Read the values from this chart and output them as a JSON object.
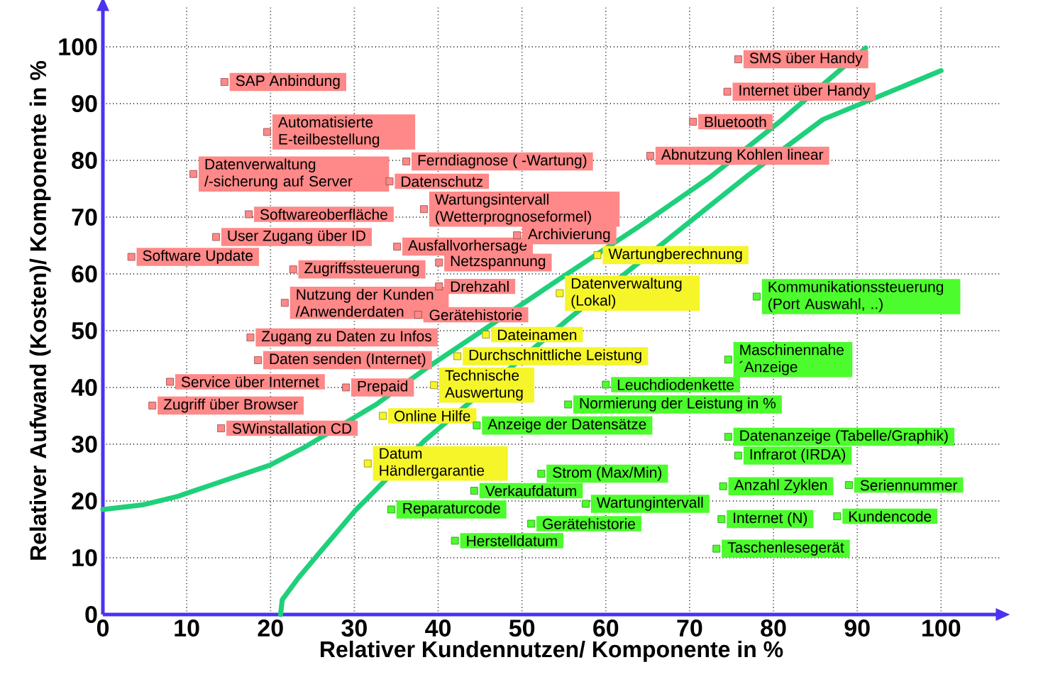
{
  "chart_data": {
    "type": "scatter",
    "xlabel": "Relativer Kundennutzen/ Komponente in %",
    "ylabel": "Relativer Aufwand (Kosten)/ Komponente in %",
    "xlim": [
      0,
      107
    ],
    "ylim": [
      0,
      107
    ],
    "xticks": [
      0,
      10,
      20,
      30,
      40,
      50,
      60,
      70,
      80,
      90,
      100
    ],
    "yticks": [
      0,
      10,
      20,
      30,
      40,
      50,
      60,
      70,
      80,
      90,
      100
    ],
    "grid": true,
    "series": [
      {
        "type": "line",
        "color": "#1fd07a",
        "marker": "none",
        "x": [
          0,
          4.7,
          8.9,
          13.1,
          19.9,
          24.1,
          32.6,
          38.5,
          55.5,
          63.9,
          72.4,
          80.9,
          91
        ],
        "values": [
          18.5,
          19.3,
          20.8,
          22.9,
          26.3,
          29.5,
          37,
          43.3,
          60.1,
          68.3,
          77,
          87,
          99.8
        ]
      },
      {
        "type": "line",
        "color": "#1fd07a",
        "marker": "none",
        "x": [
          21.2,
          21.4,
          23.3,
          25.8,
          30.1,
          38.5,
          55.5,
          72.4,
          77,
          85.9,
          100
        ],
        "values": [
          0,
          2.6,
          6.4,
          10.8,
          18.3,
          30.8,
          52,
          72,
          77.4,
          87.2,
          95.8
        ]
      },
      {
        "color": "#ff8888",
        "x": [
          14.5,
          19.6,
          10.8,
          36.2,
          34.2,
          38.3,
          17.4,
          13.5,
          3.4,
          35.1,
          49.4,
          40.1,
          22.7,
          21.7,
          40.1,
          37.6,
          17.6,
          18.5,
          8,
          29,
          5.9,
          14.1,
          75.8,
          74.5,
          70.4,
          65.3
        ],
        "values": [
          93.8,
          85,
          77.6,
          79.8,
          76.3,
          71.4,
          70.5,
          66.5,
          63,
          64.8,
          66.8,
          62,
          60.8,
          54.9,
          57.8,
          52.8,
          48.8,
          44.8,
          41,
          40,
          36.8,
          32.8,
          97.8,
          92.1,
          86.8,
          80.8
        ],
        "value_labels": [
          "SAP Anbindung",
          "Automatisierte\nE-teilbestellung",
          "Datenverwaltung\n/-sicherung auf Server",
          "Ferndiagnose ( -Wartung)",
          "Datenschutz",
          "Wartungsintervall\n(Wetterprognoseformel)",
          "Softwareoberfläche",
          "User Zugang über ID",
          "Software Update",
          "Ausfallvorhersage",
          "Archivierung",
          "Netzspannung",
          "Zugriffssteuerung",
          "Nutzung der Kunden\n/Anwenderdaten",
          "Drehzahl",
          "Gerätehistorie",
          "Zugang zu Daten zu Infos",
          "Daten senden (Internet)",
          "Service über Internet",
          "Prepaid",
          "Zugriff über Browser",
          "SWinstallation CD",
          "SMS über Handy",
          "Internet über Handy",
          "Bluetooth",
          "Abnutzung Kohlen linear"
        ]
      },
      {
        "color": "#f5f52a",
        "x": [
          59,
          54.5,
          45.7,
          42.3,
          39.5,
          33.4,
          31.6
        ],
        "values": [
          63.3,
          56.6,
          49.3,
          45.5,
          40.4,
          35,
          26.6
        ],
        "value_labels": [
          "Wartungberechnung",
          "Datenverwaltung\n(Lokal)",
          "Dateinamen",
          "Durchschnittliche Leistung",
          "Technische\nAuswertung",
          "Online Hilfe",
          "Datum\nHändlergarantie"
        ]
      },
      {
        "color": "#4cfc2c",
        "x": [
          78,
          74.6,
          60,
          55.5,
          44.6,
          74.6,
          75.8,
          52.3,
          44.3,
          57.6,
          34.4,
          51.1,
          42,
          74,
          89,
          73.8,
          87.6,
          73.2
        ],
        "values": [
          56,
          44.9,
          40.5,
          37,
          33.3,
          31.3,
          28,
          24.8,
          21.8,
          19.5,
          18.5,
          16,
          13,
          22.6,
          22.8,
          16.8,
          17.3,
          11.6
        ],
        "value_labels": [
          "Kommunikationssteuerung\n(Port Auswahl, ..)",
          "Maschinennahe\n´Anzeige",
          "Leuchdiodenkette",
          "Normierung der Leistung in %",
          "Anzeige der Datensätze",
          "Datenanzeige (Tabelle/Graphik)",
          "Infrarot (IRDA)",
          "Strom (Max/Min)",
          "Verkaufdatum",
          "Wartungintervall",
          "Reparaturcode",
          "Gerätehistorie",
          "Herstelldatum",
          "Anzahl Zyklen",
          "Seriennummer",
          "Internet (N)",
          "Kundencode",
          "Taschenlesegerät"
        ]
      }
    ]
  }
}
